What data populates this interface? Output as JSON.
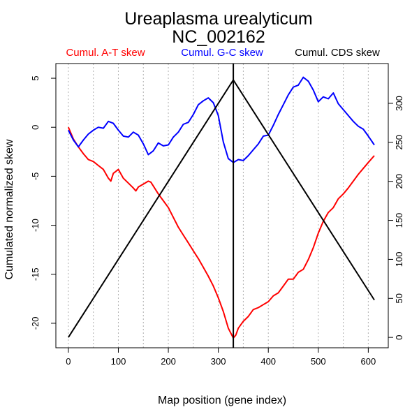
{
  "chart_data": {
    "type": "line",
    "title": "Ureaplasma urealyticum",
    "subtitle": "NC_002162",
    "xlabel": "Map position (gene index)",
    "ylabel": "Cumulated normalized skew",
    "xlim": [
      -25,
      640
    ],
    "ylim": [
      -22.5,
      6.5
    ],
    "y2lim": [
      -13.3,
      351
    ],
    "x_ticks": [
      0,
      100,
      200,
      300,
      400,
      500,
      600
    ],
    "y_ticks": [
      -20,
      -15,
      -10,
      -5,
      0,
      5
    ],
    "y2_ticks": [
      0,
      50,
      100,
      150,
      200,
      250,
      300
    ],
    "grid_x": [
      0,
      50,
      100,
      150,
      200,
      250,
      300,
      350,
      400,
      450,
      500,
      550,
      600
    ],
    "grid": "vertical-dotted",
    "legend_placement": "top",
    "vline_x": 330,
    "series": [
      {
        "name": "Cumul. A-T skew",
        "color": "#ff0000",
        "axis": "left",
        "x": [
          0,
          10,
          20,
          30,
          40,
          50,
          60,
          70,
          80,
          85,
          90,
          95,
          100,
          110,
          120,
          130,
          135,
          140,
          150,
          160,
          165,
          170,
          180,
          190,
          200,
          210,
          220,
          230,
          240,
          250,
          260,
          270,
          280,
          290,
          300,
          310,
          320,
          330,
          335,
          340,
          350,
          360,
          370,
          380,
          390,
          400,
          410,
          420,
          430,
          440,
          450,
          460,
          470,
          480,
          490,
          500,
          510,
          520,
          530,
          540,
          550,
          560,
          570,
          580,
          590,
          600,
          612
        ],
        "y": [
          0,
          -1.2,
          -2,
          -2.7,
          -3.3,
          -3.5,
          -3.9,
          -4.3,
          -5.2,
          -5.5,
          -4.7,
          -4.5,
          -4.3,
          -5.2,
          -5.7,
          -6.2,
          -6.5,
          -6.1,
          -5.8,
          -5.5,
          -5.6,
          -6,
          -6.8,
          -7.5,
          -8.2,
          -9.2,
          -10.2,
          -11,
          -11.8,
          -12.6,
          -13.4,
          -14.3,
          -15.2,
          -16.2,
          -17.4,
          -18.8,
          -20.5,
          -21.5,
          -21.2,
          -20.5,
          -19.8,
          -19.3,
          -18.6,
          -18.4,
          -18.1,
          -17.8,
          -17.2,
          -16.9,
          -16.2,
          -15.5,
          -15.5,
          -14.8,
          -14.5,
          -13.5,
          -12.3,
          -10.8,
          -9.6,
          -8.7,
          -8.2,
          -7.3,
          -6.8,
          -6.2,
          -5.5,
          -4.8,
          -4.2,
          -3.6,
          -2.9
        ]
      },
      {
        "name": "Cumul. G-C skew",
        "color": "#0000ff",
        "axis": "left",
        "x": [
          0,
          10,
          20,
          30,
          40,
          50,
          60,
          70,
          80,
          90,
          100,
          110,
          120,
          130,
          140,
          150,
          160,
          170,
          180,
          190,
          200,
          210,
          220,
          230,
          240,
          250,
          260,
          270,
          280,
          290,
          300,
          310,
          320,
          330,
          340,
          350,
          360,
          370,
          380,
          390,
          400,
          410,
          420,
          430,
          440,
          450,
          460,
          470,
          480,
          490,
          500,
          510,
          520,
          530,
          540,
          550,
          560,
          570,
          580,
          590,
          600,
          612
        ],
        "y": [
          -0.3,
          -1.3,
          -2,
          -1.3,
          -0.7,
          -0.3,
          0,
          -0.1,
          0.6,
          0.4,
          -0.3,
          -0.9,
          -1,
          -0.5,
          -0.8,
          -1.7,
          -2.8,
          -2.4,
          -1.6,
          -1.9,
          -1.8,
          -1,
          -0.5,
          0.3,
          0.5,
          1.3,
          2.3,
          2.7,
          3,
          2.5,
          1.2,
          -1.5,
          -3.2,
          -3.6,
          -3.3,
          -3.4,
          -2.9,
          -2.3,
          -1.7,
          -0.9,
          -0.8,
          0.2,
          1.3,
          2.3,
          3.3,
          4.1,
          4.3,
          5.1,
          4.7,
          3.8,
          2.6,
          3.1,
          2.9,
          3.5,
          2.4,
          1.8,
          1.2,
          0.6,
          0.1,
          -0.2,
          -0.9,
          -1.8
        ]
      },
      {
        "name": "Cumul. CDS skew",
        "color": "#000000",
        "axis": "right",
        "x": [
          0,
          330,
          612
        ],
        "y": [
          0,
          330,
          48
        ]
      }
    ]
  }
}
